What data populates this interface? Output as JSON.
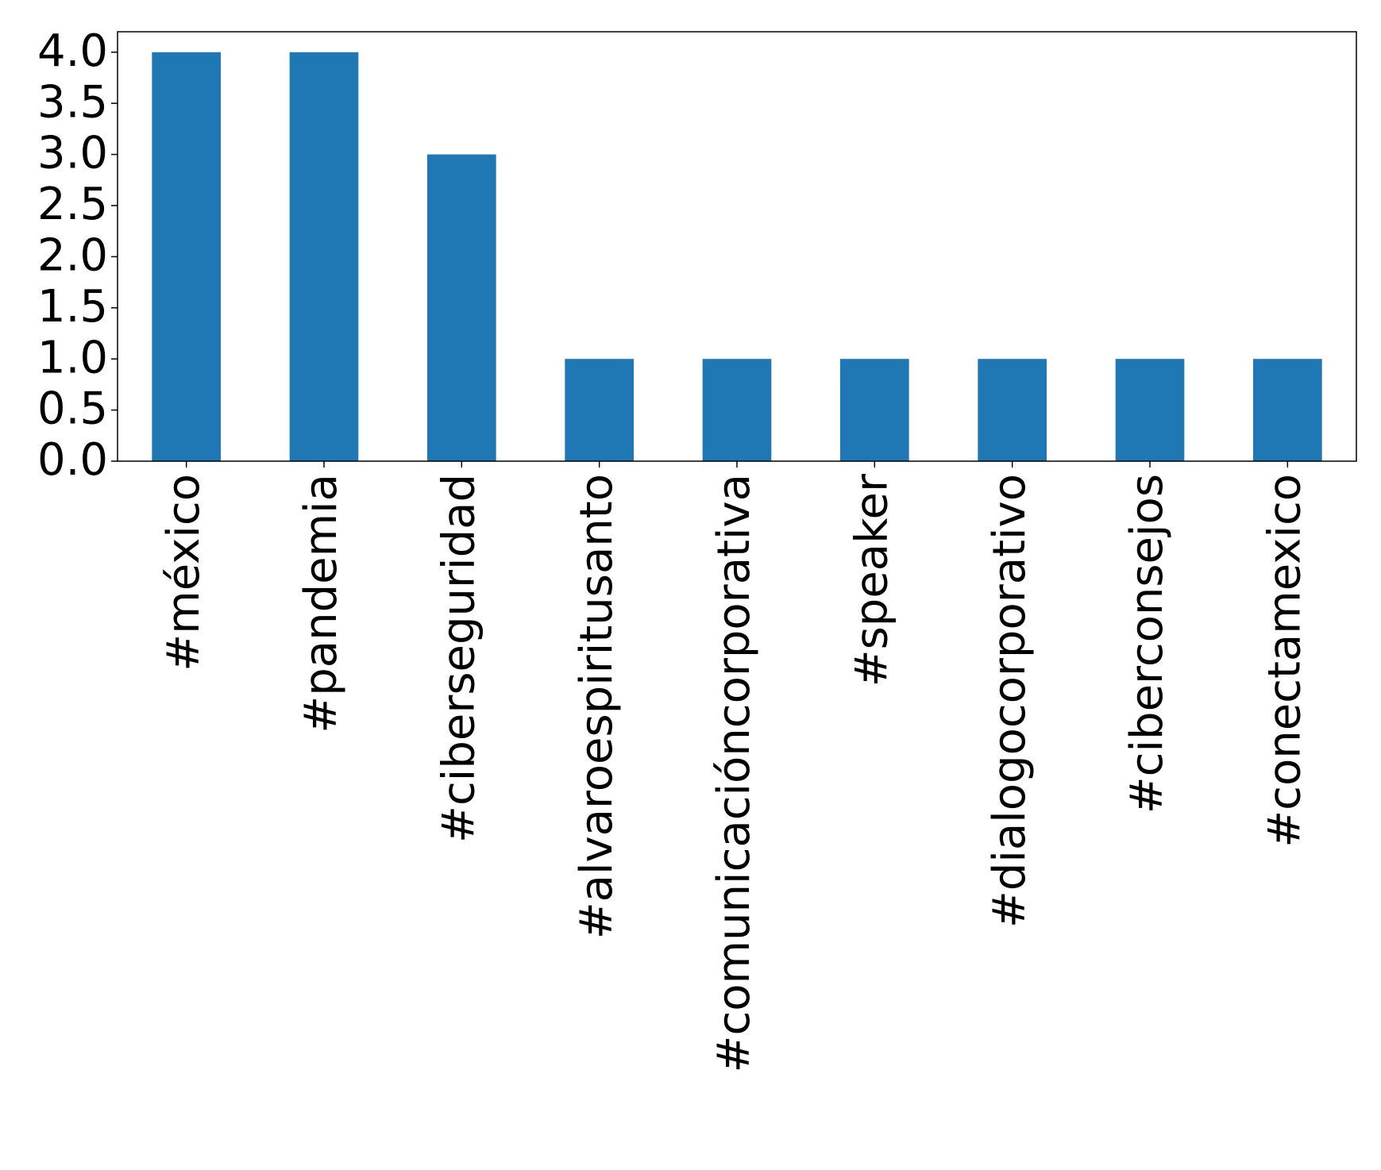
{
  "chart_data": {
    "type": "bar",
    "categories": [
      "#méxico",
      "#pandemia",
      "#ciberseguridad",
      "#alvaroespiritusanto",
      "#comunicacióncorporativa",
      "#speaker",
      "#dialogocorporativo",
      "#ciberconsejos",
      "#conectamexico"
    ],
    "values": [
      4,
      4,
      3,
      1,
      1,
      1,
      1,
      1,
      1
    ],
    "color": "#1f77b4",
    "ylim": [
      0,
      4.2
    ],
    "yticks": [
      {
        "value": 0,
        "label": "0.0"
      },
      {
        "value": 0.5,
        "label": "0.5"
      },
      {
        "value": 1,
        "label": "1.0"
      },
      {
        "value": 1.5,
        "label": "1.5"
      },
      {
        "value": 2,
        "label": "2.0"
      },
      {
        "value": 2.5,
        "label": "2.5"
      },
      {
        "value": 3,
        "label": "3.0"
      },
      {
        "value": 3.5,
        "label": "3.5"
      },
      {
        "value": 4,
        "label": "4.0"
      }
    ],
    "grid": false
  }
}
